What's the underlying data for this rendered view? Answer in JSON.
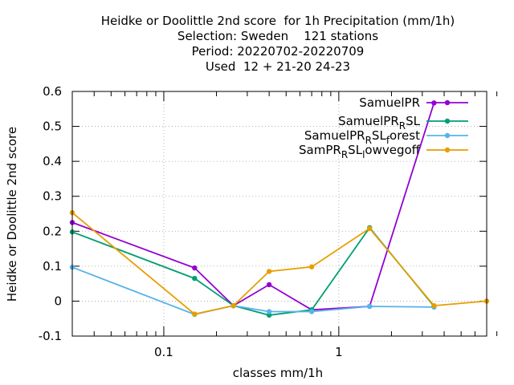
{
  "chart_data": {
    "type": "line",
    "title_lines": [
      "Heidke or Doolittle 2nd score  for 1h Precipitation (mm/1h)",
      "Selection: Sweden    121 stations",
      "Period: 20220702-20220709",
      "Used  12 + 21-20 24-23"
    ],
    "xlabel": "classes mm/1h",
    "ylabel": "Heidke or Doolittle 2nd score",
    "x_scale": "log",
    "xlim": [
      0.03,
      7.0
    ],
    "ylim": [
      -0.1,
      0.6
    ],
    "x_ticks": [
      {
        "value": 0.1,
        "label": "0.1"
      },
      {
        "value": 1,
        "label": "1"
      }
    ],
    "y_ticks": [
      {
        "value": -0.1,
        "label": "-0.1"
      },
      {
        "value": 0,
        "label": "0"
      },
      {
        "value": 0.1,
        "label": "0.1"
      },
      {
        "value": 0.2,
        "label": "0.2"
      },
      {
        "value": 0.3,
        "label": "0.3"
      },
      {
        "value": 0.4,
        "label": "0.4"
      },
      {
        "value": 0.5,
        "label": "0.5"
      },
      {
        "value": 0.6,
        "label": "0.6"
      }
    ],
    "grid": true,
    "legend_position": "top-right",
    "series": [
      {
        "name": "SamuelPR",
        "legend_parts": [
          {
            "text": "SamuelPR",
            "sub": false
          }
        ],
        "color": "#9400d3",
        "x": [
          0.03,
          0.15,
          0.25,
          0.4,
          0.7,
          1.5,
          3.5
        ],
        "y": [
          0.225,
          0.095,
          -0.013,
          0.047,
          -0.025,
          -0.015,
          0.567
        ]
      },
      {
        "name": "SamuelPR_RSL",
        "legend_parts": [
          {
            "text": "SamuelPR",
            "sub": false
          },
          {
            "text": "R",
            "sub": true
          },
          {
            "text": "SL",
            "sub": false
          }
        ],
        "color": "#009e73",
        "x": [
          0.03,
          0.15,
          0.25,
          0.4,
          0.7,
          1.5,
          3.5
        ],
        "y": [
          0.198,
          0.065,
          -0.013,
          -0.04,
          -0.025,
          0.21,
          -0.015
        ]
      },
      {
        "name": "SamuelPR_RSL_forest",
        "legend_parts": [
          {
            "text": "SamuelPR",
            "sub": false
          },
          {
            "text": "R",
            "sub": true
          },
          {
            "text": "SL",
            "sub": false
          },
          {
            "text": "f",
            "sub": true
          },
          {
            "text": "orest",
            "sub": false
          }
        ],
        "color": "#56b4e9",
        "x": [
          0.03,
          0.15,
          0.25,
          0.4,
          0.7,
          1.5,
          3.5
        ],
        "y": [
          0.097,
          -0.038,
          -0.013,
          -0.03,
          -0.03,
          -0.015,
          -0.017
        ]
      },
      {
        "name": "SamPR_RSL_lowvegoff",
        "legend_parts": [
          {
            "text": "SamPR",
            "sub": false
          },
          {
            "text": "R",
            "sub": true
          },
          {
            "text": "SL",
            "sub": false
          },
          {
            "text": "l",
            "sub": true
          },
          {
            "text": "owvegoff",
            "sub": false
          }
        ],
        "color": "#e69f00",
        "x": [
          0.03,
          0.15,
          0.25,
          0.4,
          0.7,
          1.5,
          3.5,
          7.0
        ],
        "y": [
          0.253,
          -0.037,
          -0.013,
          0.085,
          0.098,
          0.208,
          -0.013,
          0.0
        ]
      }
    ]
  }
}
